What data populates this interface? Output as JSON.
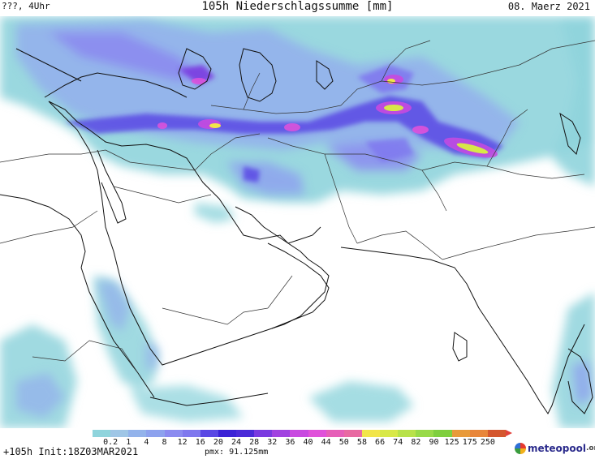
{
  "header": {
    "left": "???, 4Uhr",
    "title": "105h Niederschlagssumme [mm]",
    "date": "08. Maerz 2021"
  },
  "scale": {
    "ticks": [
      "0.2",
      "1",
      "4",
      "8",
      "12",
      "16",
      "20",
      "24",
      "28",
      "32",
      "36",
      "40",
      "44",
      "50",
      "58",
      "66",
      "74",
      "82",
      "90",
      "125",
      "175",
      "250"
    ],
    "colors": [
      "#8fd4dc",
      "#9fc6e6",
      "#93b3eb",
      "#8da2ee",
      "#8b8bf0",
      "#7f78ee",
      "#5a48e4",
      "#3b22d6",
      "#4a2ad8",
      "#7a3ae0",
      "#a143e0",
      "#c84ae0",
      "#e052da",
      "#e65fb8",
      "#e86aa2",
      "#f2e54a",
      "#d8e848",
      "#b8e24a",
      "#98da48",
      "#7fcf3e",
      "#e89a3a",
      "#e8863a",
      "#d4572e"
    ]
  },
  "footer": {
    "run": "+105h Init:18Z03MAR2021",
    "pmx": "pmx: 91.125mm"
  },
  "logo": {
    "text": "meteopool",
    "suffix": ".org"
  },
  "map_icons": {
    "basemap": "map-icon",
    "logo": "meteopool-logo-icon"
  }
}
